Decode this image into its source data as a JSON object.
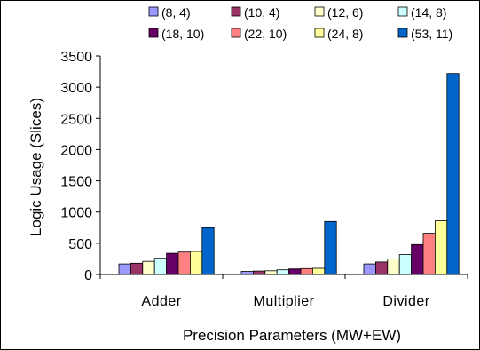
{
  "chart_data": {
    "type": "bar",
    "title": "",
    "xlabel": "Precision Parameters (MW+EW)",
    "ylabel": "Logic Usage (Slices)",
    "ylim": [
      0,
      3500
    ],
    "yticks": [
      0,
      500,
      1000,
      1500,
      2000,
      2500,
      3000,
      3500
    ],
    "grid": false,
    "legend_position": "top",
    "categories": [
      "Adder",
      "Multiplier",
      "Divider"
    ],
    "series": [
      {
        "name": "(8, 4)",
        "color": "#9999ff",
        "values": [
          170,
          50,
          170
        ]
      },
      {
        "name": "(10, 4)",
        "color": "#993366",
        "values": [
          180,
          55,
          200
        ]
      },
      {
        "name": "(12, 6)",
        "color": "#ffffcc",
        "values": [
          210,
          60,
          250
        ]
      },
      {
        "name": "(14, 8)",
        "color": "#ccffff",
        "values": [
          260,
          75,
          320
        ]
      },
      {
        "name": "(18, 10)",
        "color": "#660066",
        "values": [
          340,
          90,
          480
        ]
      },
      {
        "name": "(22, 10)",
        "color": "#ff8080",
        "values": [
          360,
          95,
          660
        ]
      },
      {
        "name": "(24, 8)",
        "color": "#ffff99",
        "values": [
          370,
          100,
          860
        ]
      },
      {
        "name": "(53, 11)",
        "color": "#0066cc",
        "values": [
          750,
          850,
          3220
        ]
      }
    ]
  }
}
